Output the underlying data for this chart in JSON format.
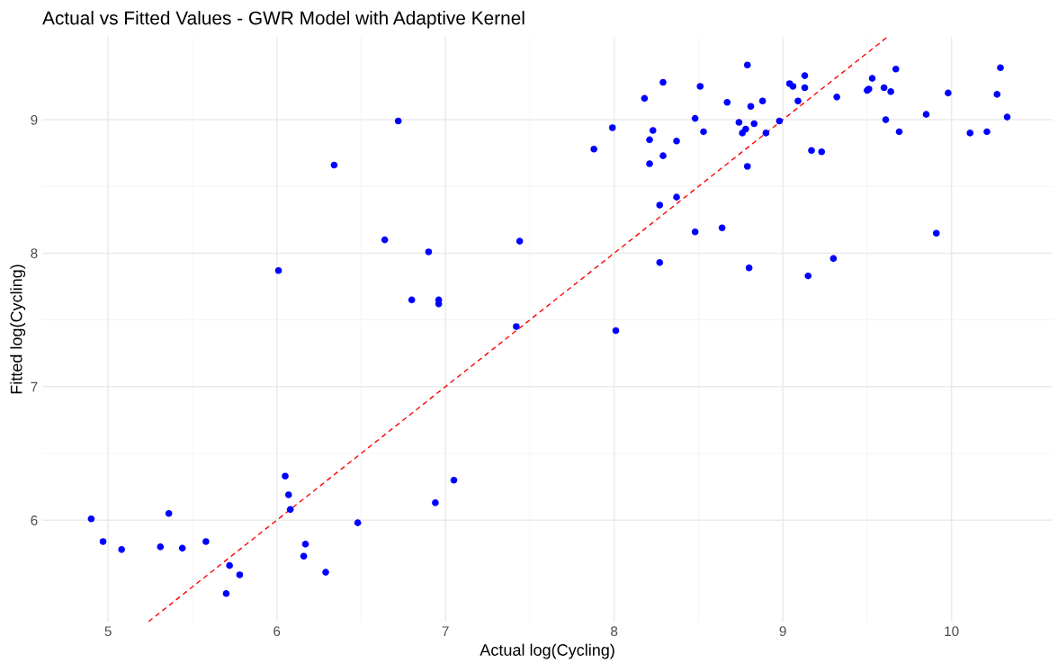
{
  "chart_data": {
    "type": "scatter",
    "title": "Actual vs Fitted Values - GWR Model with Adaptive Kernel",
    "xlabel": "Actual log(Cycling)",
    "ylabel": "Fitted log(Cycling)",
    "xlim": [
      4.61,
      10.6
    ],
    "ylim": [
      5.24,
      9.62
    ],
    "xticks": [
      5,
      6,
      7,
      8,
      9,
      10
    ],
    "yticks": [
      6,
      7,
      8,
      9
    ],
    "grid": true,
    "marker": "circle",
    "series": [
      {
        "color": "#0000ff",
        "x": [
          4.9,
          4.97,
          5.08,
          5.31,
          5.36,
          5.44,
          5.58,
          5.72,
          5.78,
          5.7,
          6.05,
          6.07,
          6.08,
          6.17,
          6.16,
          6.29,
          6.48,
          6.94,
          7.05,
          6.01,
          6.34,
          6.72,
          6.64,
          6.9,
          6.8,
          6.96,
          6.96,
          7.44,
          7.42,
          8.01,
          7.88,
          7.99,
          8.29,
          8.18,
          8.51,
          8.79,
          8.67,
          8.81,
          8.88,
          8.48,
          8.23,
          8.21,
          8.37,
          8.53,
          8.74,
          8.78,
          8.76,
          8.83,
          8.9,
          8.98,
          8.29,
          8.21,
          8.79,
          8.37,
          8.27,
          8.48,
          8.64,
          8.27,
          8.8,
          9.15,
          9.3,
          9.91,
          9.17,
          9.23,
          9.09,
          9.04,
          9.06,
          9.13,
          9.13,
          9.32,
          9.5,
          9.51,
          9.53,
          9.67,
          9.6,
          9.64,
          9.61,
          9.69,
          9.85,
          9.98,
          10.11,
          10.21,
          10.27,
          10.29,
          10.33
        ],
        "values": [
          6.01,
          5.84,
          5.78,
          5.8,
          6.05,
          5.79,
          5.84,
          5.66,
          5.59,
          5.45,
          6.33,
          6.19,
          6.08,
          5.82,
          5.73,
          5.61,
          5.98,
          6.13,
          6.3,
          7.87,
          8.66,
          8.99,
          8.1,
          8.01,
          7.65,
          7.65,
          7.62,
          8.09,
          7.45,
          7.42,
          8.78,
          8.94,
          9.28,
          9.16,
          9.25,
          9.41,
          9.13,
          9.1,
          9.14,
          9.01,
          8.92,
          8.85,
          8.84,
          8.91,
          8.98,
          8.93,
          8.9,
          8.97,
          8.9,
          8.99,
          8.73,
          8.67,
          8.65,
          8.42,
          8.36,
          8.16,
          8.19,
          7.93,
          7.89,
          7.83,
          7.96,
          8.15,
          8.77,
          8.76,
          9.14,
          9.27,
          9.25,
          9.33,
          9.24,
          9.17,
          9.22,
          9.23,
          9.31,
          9.38,
          9.24,
          9.21,
          9.0,
          8.91,
          9.04,
          9.2,
          8.9,
          8.91,
          9.19,
          9.39,
          9.02
        ]
      },
      {
        "type": "line",
        "color": "#ff0000",
        "line_style": "dashed",
        "marker": "none",
        "x": [
          5.24,
          9.62
        ],
        "values": [
          5.24,
          9.62
        ]
      }
    ]
  }
}
